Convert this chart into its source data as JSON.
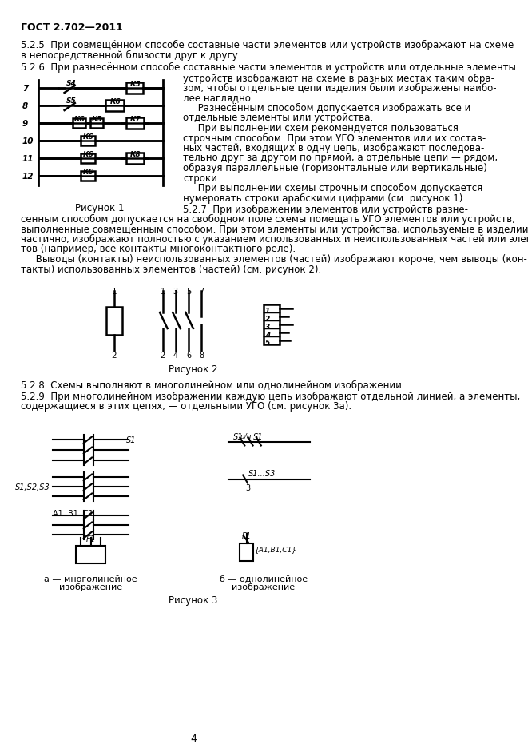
{
  "background_color": "#ffffff",
  "header": "ГОСТ 2.702—2011",
  "page_number": "4",
  "para_525_line1": "5.2.5  При совмещённом способе составные части элементов или устройств изображают на схеме",
  "para_525_line2": "в непосредственной близости друг к другу.",
  "para_526_lead": "5.2.6  При разнесённом способе составные части элементов и устройств или отдельные элементы",
  "right_col_lines": [
    "устройств изображают на схеме в разных местах таким обра-",
    "зом, чтобы отдельные цепи изделия были изображены наибо-",
    "лее наглядно.",
    "     Разнесённым способом допускается изображать все и",
    "отдельные элементы или устройства.",
    "     При выполнении схем рекомендуется пользоваться",
    "строчным способом. При этом УГО элементов или их состав-",
    "ных частей, входящих в одну цепь, изображают последова-",
    "тельно друг за другом по прямой, а отдельные цепи — рядом,",
    "образуя параллельные (горизонтальные или вертикальные)",
    "строки.",
    "     При выполнении схемы строчным способом допускается",
    "нумеровать строки арабскими цифрами (см. рисунок 1)."
  ],
  "para_527_lines": [
    "5.2.7  При изображении элементов или устройств разнесенным способом допускается на свободном поле схемы помещать УГО элементов или устройств,",
    "выполненные совмещённым способом. При этом элементы или устройства, используемые в изделии",
    "частично, изображают полностью с указанием использованных и неиспользованных частей или элемен-",
    "тов (например, все контакты многоконтактного реле).",
    "     Выводы (контакты) неиспользованных элементов (частей) изображают короче, чем выводы (кон-",
    "такты) использованных элементов (частей) (см. рисунок 2)."
  ],
  "caption1": "Рисунок 1",
  "caption2": "Рисунок 2",
  "caption3": "Рисунок 3",
  "para_528": "5.2.8  Схемы выполняют в многолинейном или однолинейном изображении.",
  "para_529_line1": "5.2.9  При многолинейном изображении каждую цепь изображают отдельной линией, а элементы,",
  "para_529_line2": "содержащиеся в этих цепях, — отдельными УГО (см. рисунок 3а).",
  "fig3_label_a_line1": "а — многолинейное",
  "fig3_label_a_line2": "изображение",
  "fig3_label_b_line1": "б — однолинейное",
  "fig3_label_b_line2": "изображение"
}
